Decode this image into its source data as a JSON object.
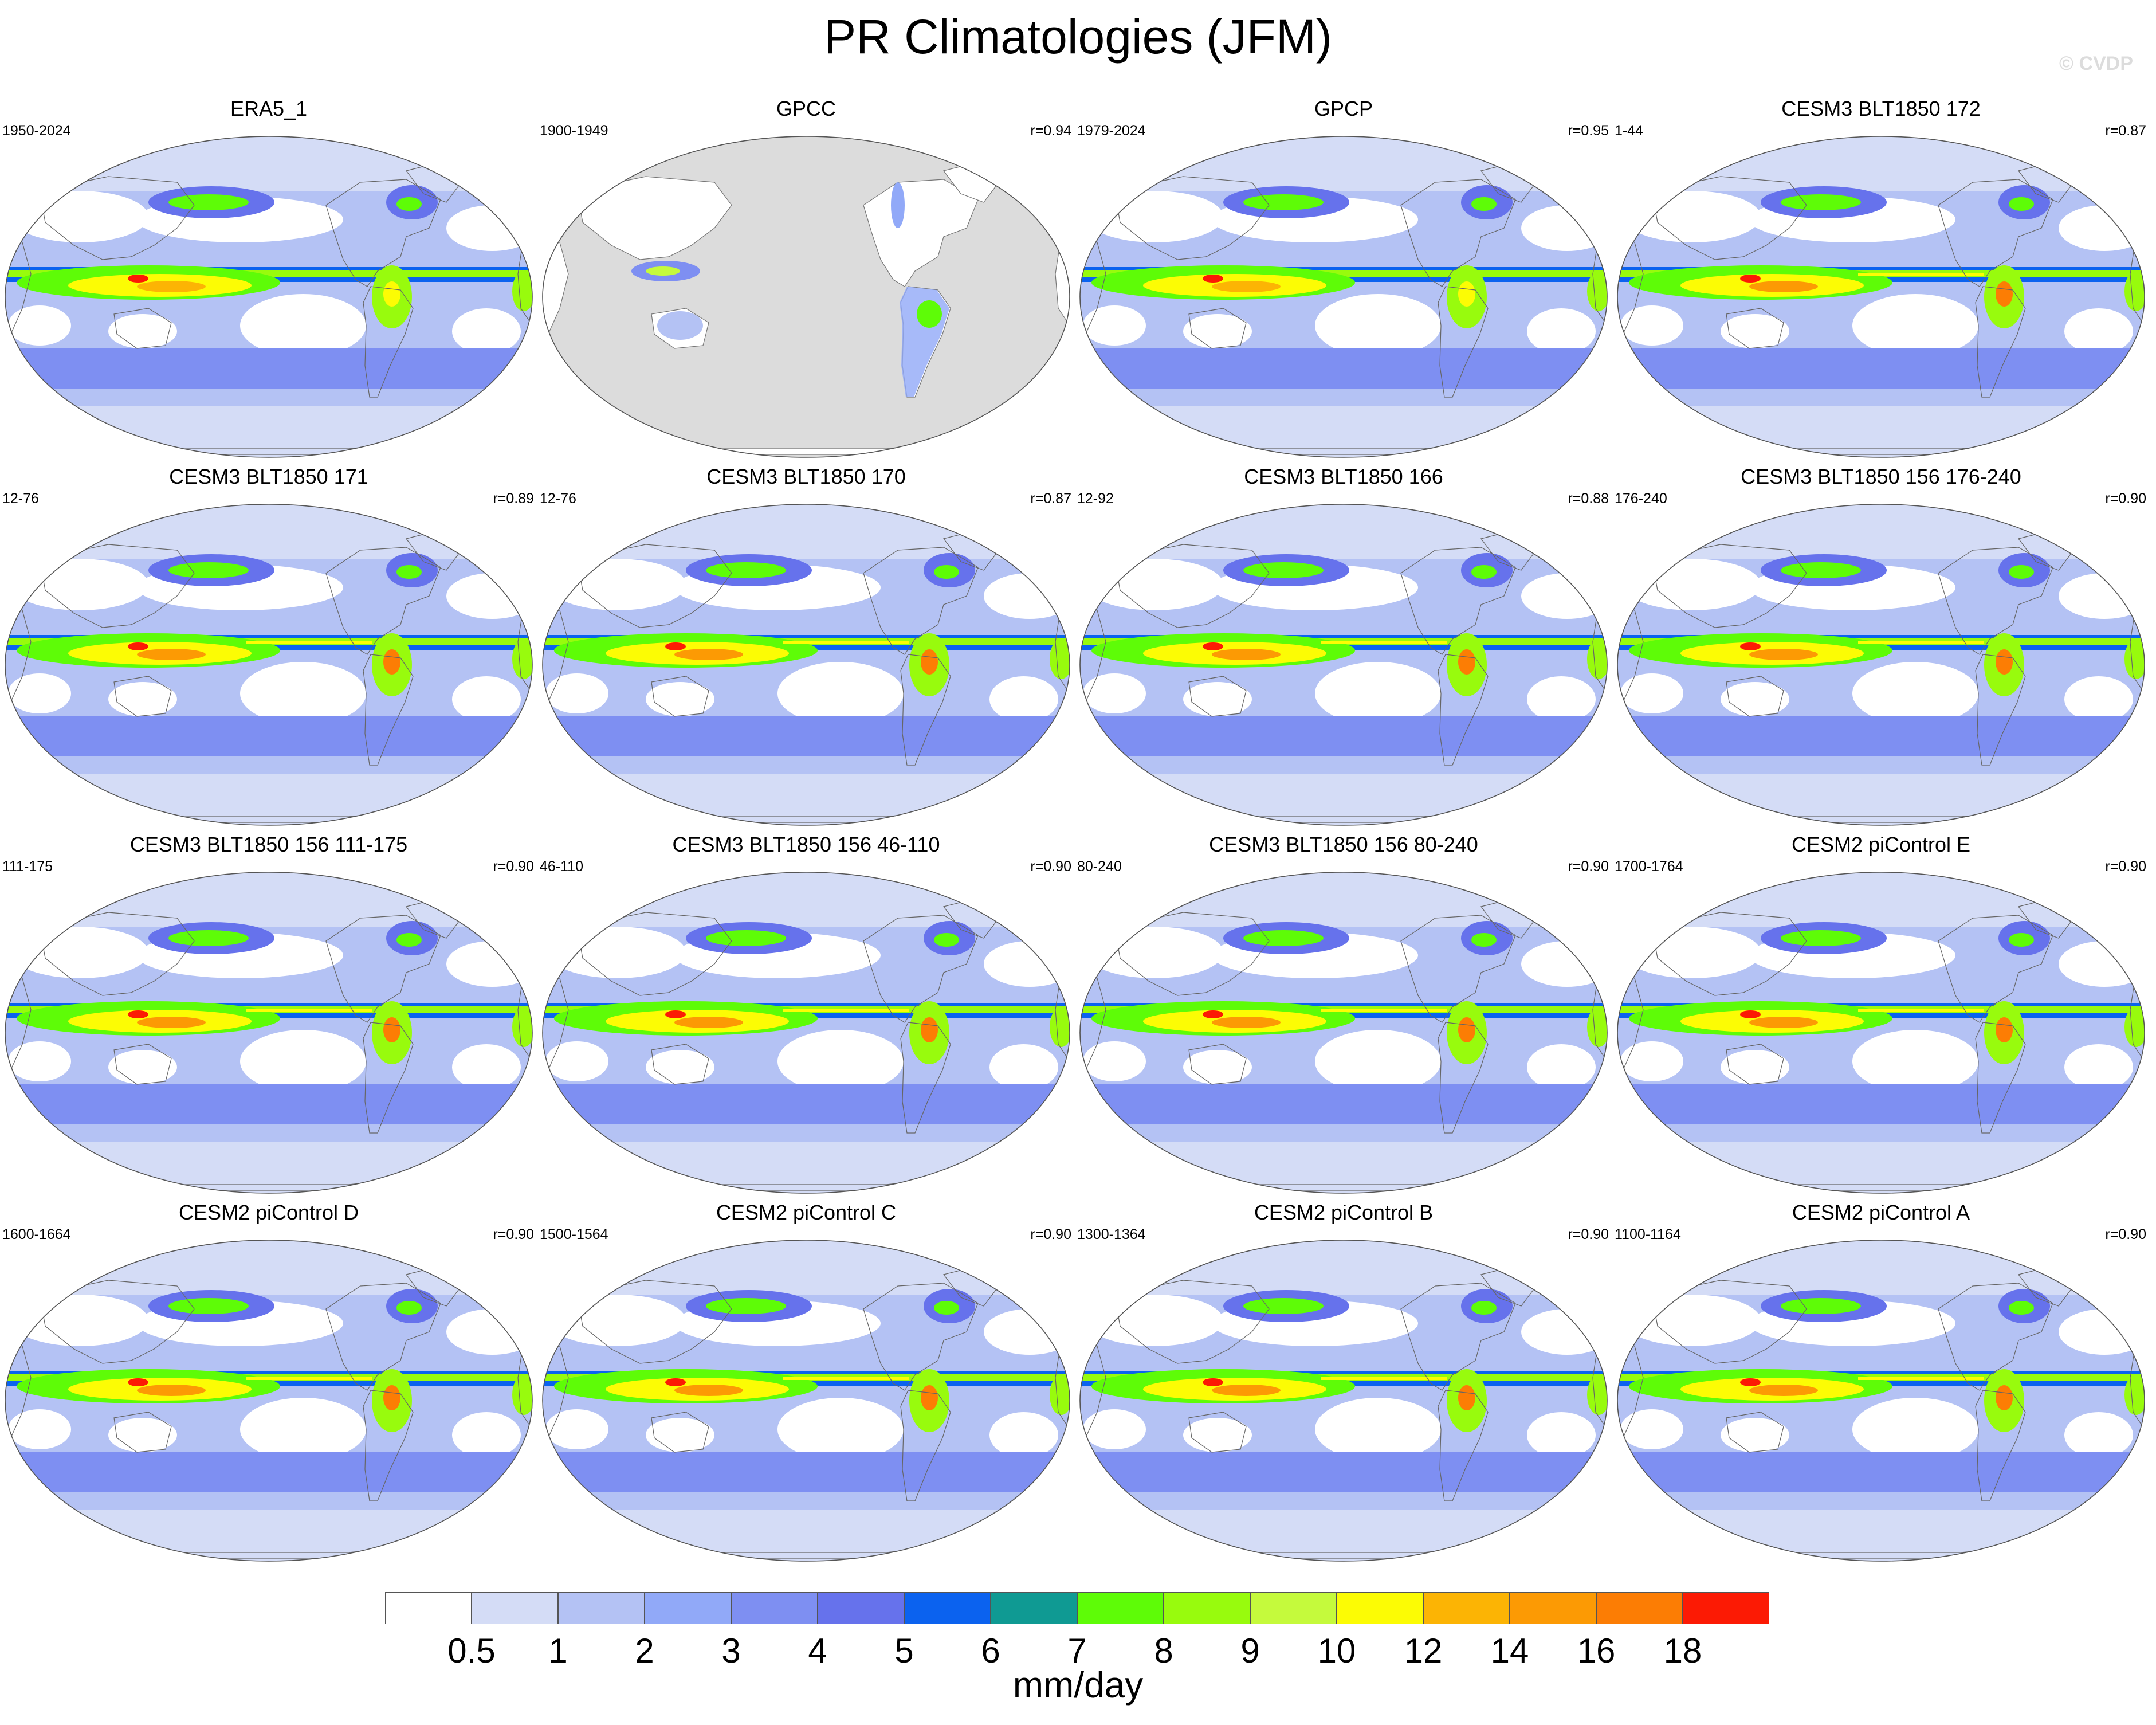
{
  "title": "PR Climatologies (JFM)",
  "watermark": "© CVDP",
  "panels": [
    {
      "title": "ERA5_1",
      "years": "1950-2024",
      "r": "",
      "variant": "obs"
    },
    {
      "title": "GPCC",
      "years": "1900-1949",
      "r": "r=0.94",
      "variant": "land"
    },
    {
      "title": "GPCP",
      "years": "1979-2024",
      "r": "r=0.95",
      "variant": "obs"
    },
    {
      "title": "CESM3 BLT1850 172",
      "years": "1-44",
      "r": "r=0.87",
      "variant": "model"
    },
    {
      "title": "CESM3 BLT1850 171",
      "years": "12-76",
      "r": "r=0.89",
      "variant": "model"
    },
    {
      "title": "CESM3 BLT1850 170",
      "years": "12-76",
      "r": "r=0.87",
      "variant": "model"
    },
    {
      "title": "CESM3 BLT1850 166",
      "years": "12-92",
      "r": "r=0.88",
      "variant": "model"
    },
    {
      "title": "CESM3 BLT1850 156 176-240",
      "years": "176-240",
      "r": "r=0.90",
      "variant": "model"
    },
    {
      "title": "CESM3 BLT1850 156 111-175",
      "years": "111-175",
      "r": "r=0.90",
      "variant": "model"
    },
    {
      "title": "CESM3 BLT1850 156 46-110",
      "years": "46-110",
      "r": "r=0.90",
      "variant": "model"
    },
    {
      "title": "CESM3 BLT1850 156 80-240",
      "years": "80-240",
      "r": "r=0.90",
      "variant": "model"
    },
    {
      "title": "CESM2 piControl E",
      "years": "1700-1764",
      "r": "r=0.90",
      "variant": "model"
    },
    {
      "title": "CESM2 piControl D",
      "years": "1600-1664",
      "r": "r=0.90",
      "variant": "model"
    },
    {
      "title": "CESM2 piControl C",
      "years": "1500-1564",
      "r": "r=0.90",
      "variant": "model"
    },
    {
      "title": "CESM2 piControl B",
      "years": "1300-1364",
      "r": "r=0.90",
      "variant": "model"
    },
    {
      "title": "CESM2 piControl A",
      "years": "1100-1164",
      "r": "r=0.90",
      "variant": "model"
    }
  ],
  "colorbar": {
    "colors": [
      "#ffffff",
      "#d4dcf6",
      "#b4c2f4",
      "#91a9f8",
      "#7e8ff2",
      "#6672ec",
      "#0b62ef",
      "#0f9a93",
      "#5efc07",
      "#98fb0d",
      "#c5fa3c",
      "#fcfc04",
      "#fcb404",
      "#fc9a04",
      "#fc7d04",
      "#fc1a04"
    ],
    "labels": [
      "0.5",
      "1",
      "2",
      "3",
      "4",
      "5",
      "6",
      "7",
      "8",
      "9",
      "10",
      "12",
      "14",
      "16",
      "18"
    ],
    "units": "mm/day"
  }
}
